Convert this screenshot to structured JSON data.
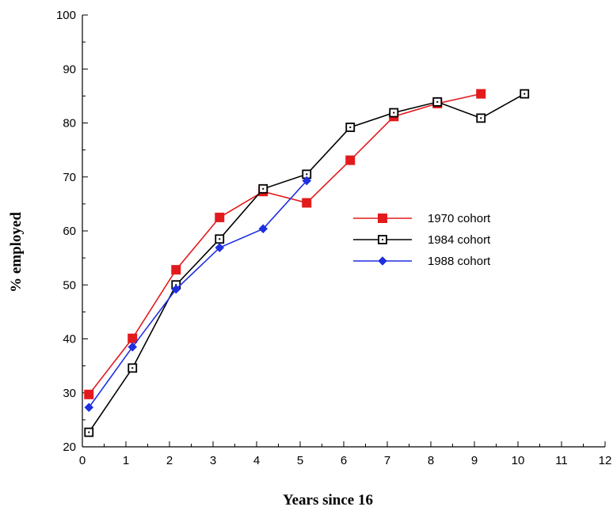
{
  "chart_data": {
    "type": "line",
    "title": "",
    "xlabel": "Years since 16",
    "ylabel": "% employed",
    "xlim": [
      0,
      12
    ],
    "ylim": [
      20,
      100
    ],
    "xticks": [
      0,
      1,
      2,
      3,
      4,
      5,
      6,
      7,
      8,
      9,
      10,
      11,
      12
    ],
    "yticks": [
      20,
      30,
      40,
      50,
      60,
      70,
      80,
      90,
      100
    ],
    "grid": false,
    "legend_position": "center-right",
    "series": [
      {
        "name": "1970 cohort",
        "color": "#e31a1c",
        "marker": "filled-square",
        "x": [
          0.15,
          1.15,
          2.15,
          3.15,
          4.15,
          5.15,
          6.15,
          7.15,
          8.15,
          9.15
        ],
        "y": [
          29.7,
          40.1,
          52.8,
          62.5,
          67.3,
          65.2,
          73.1,
          81.2,
          83.6,
          85.4
        ]
      },
      {
        "name": "1984 cohort",
        "color": "#000000",
        "marker": "open-square",
        "x": [
          0.15,
          1.15,
          2.15,
          3.15,
          4.15,
          5.15,
          6.15,
          7.15,
          8.15,
          9.15,
          10.15
        ],
        "y": [
          22.7,
          34.6,
          50.0,
          58.5,
          67.8,
          70.5,
          79.2,
          81.9,
          83.9,
          80.9,
          85.4
        ]
      },
      {
        "name": "1988 cohort",
        "color": "#1f2fe0",
        "marker": "diamond",
        "x": [
          0.15,
          1.15,
          2.15,
          3.15,
          4.15,
          5.15
        ],
        "y": [
          27.3,
          38.5,
          49.2,
          56.9,
          60.4,
          69.3
        ]
      }
    ]
  }
}
